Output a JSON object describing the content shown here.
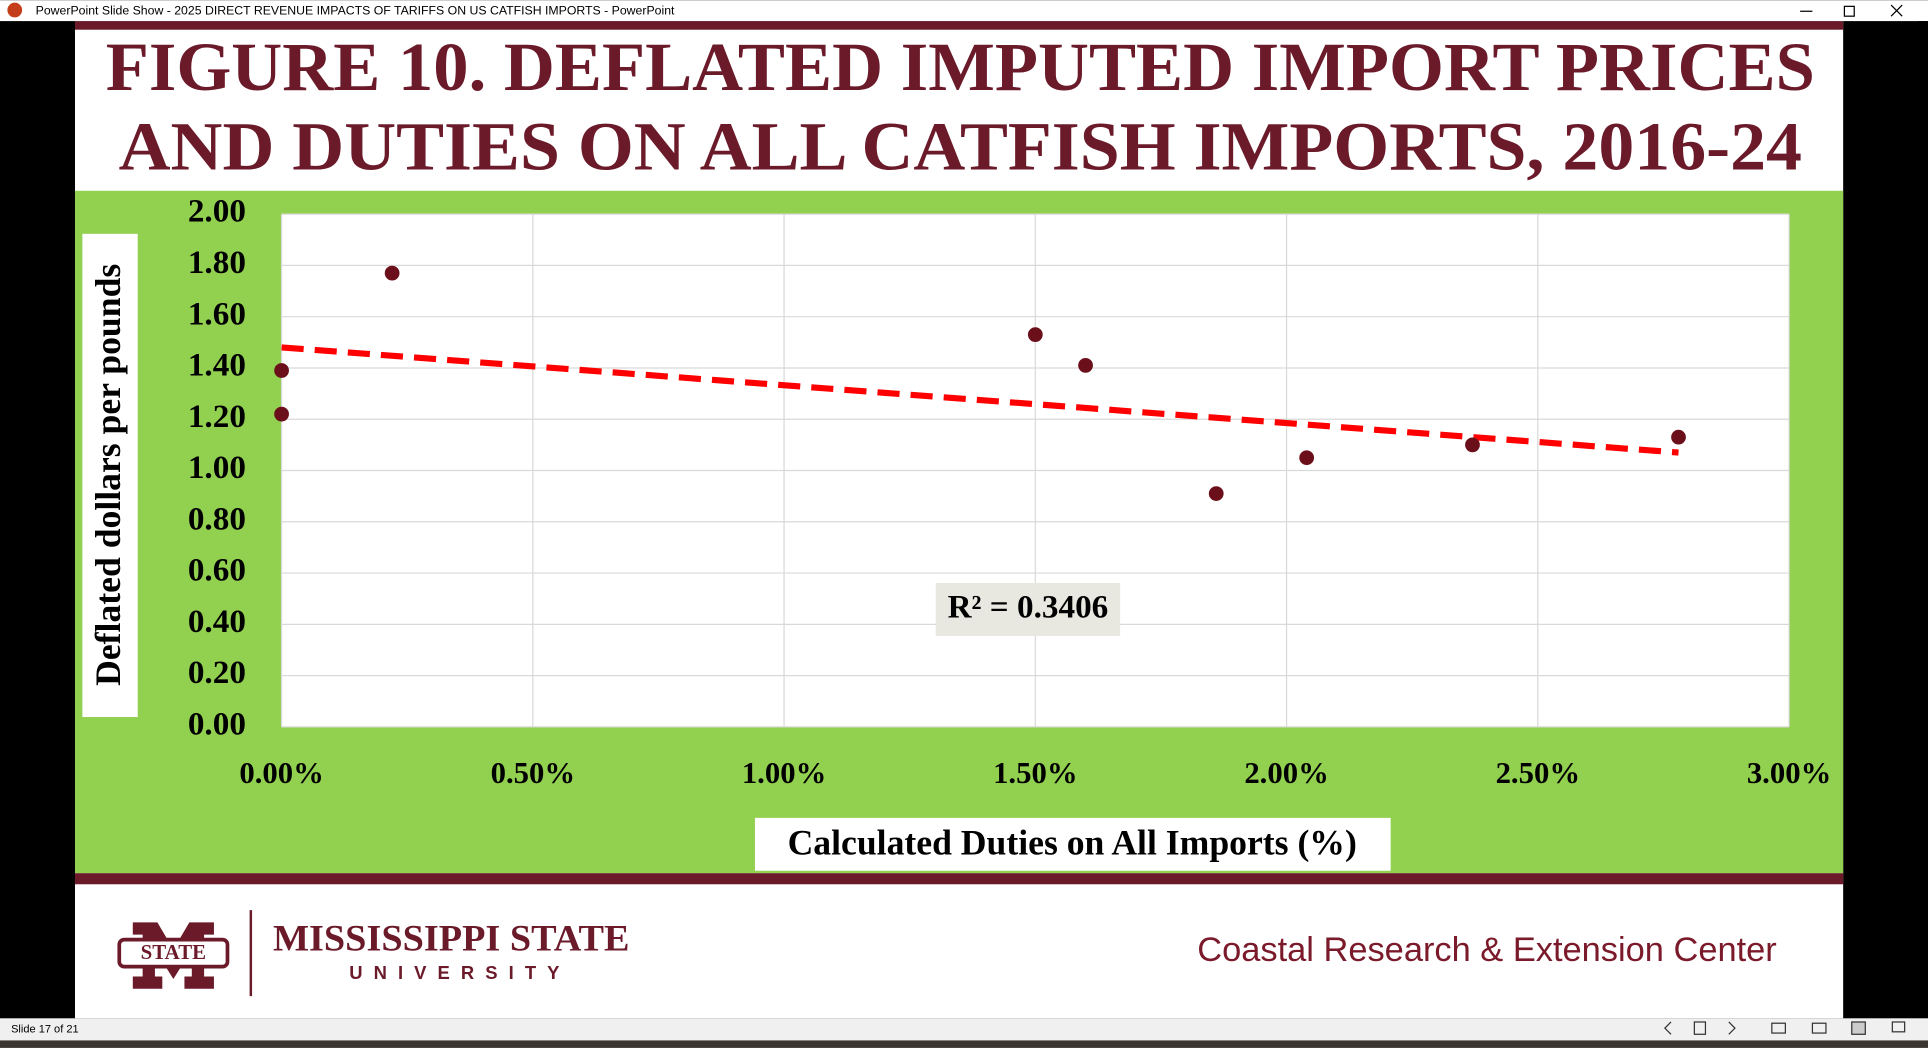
{
  "window_title": "PowerPoint Slide Show  -  2025 DIRECT REVENUE IMPACTS OF TARIFFS ON US CATFISH IMPORTS  -  PowerPoint",
  "status": "Slide 17 of 21",
  "footer": {
    "logo_badge": "STATE",
    "university": "MISSISSIPPI STATE",
    "university_sub": "UNIVERSITY",
    "center": "Coastal Research & Extension Center"
  },
  "chart_data": {
    "type": "scatter",
    "title": [
      "FIGURE 10. DEFLATED IMPUTED IMPORT PRICES",
      "AND DUTIES ON ALL CATFISH IMPORTS, 2016-24"
    ],
    "x_label": "Calculated Duties on All Imports (%)",
    "y_label": "Deflated dollars per pounds",
    "x": [
      0,
      0,
      0.22,
      1.5,
      1.6,
      1.86,
      2.04,
      2.37,
      2.78
    ],
    "values": [
      1.39,
      1.22,
      1.77,
      1.53,
      1.41,
      0.91,
      1.05,
      1.1,
      1.13
    ],
    "color": "#6b0f1a",
    "trendline": {
      "x": [
        0,
        2.78
      ],
      "y": [
        1.48,
        1.07
      ],
      "color": "#ff0000"
    },
    "annotation": "R² = 0.3406",
    "xlim": [
      0,
      3
    ],
    "ylim": [
      0,
      2
    ],
    "xticks": [
      {
        "value": 0,
        "label": "0.00%"
      },
      {
        "value": 0.5,
        "label": "0.50%"
      },
      {
        "value": 1,
        "label": "1.00%"
      },
      {
        "value": 1.5,
        "label": "1.50%"
      },
      {
        "value": 2,
        "label": "2.00%"
      },
      {
        "value": 2.5,
        "label": "2.50%"
      },
      {
        "value": 3,
        "label": "3.00%"
      }
    ],
    "yticks": [
      {
        "value": 0,
        "label": "0.00"
      },
      {
        "value": 0.2,
        "label": "0.20"
      },
      {
        "value": 0.4,
        "label": "0.40"
      },
      {
        "value": 0.6,
        "label": "0.60"
      },
      {
        "value": 0.8,
        "label": "0.80"
      },
      {
        "value": 1,
        "label": "1.00"
      },
      {
        "value": 1.2,
        "label": "1.20"
      },
      {
        "value": 1.4,
        "label": "1.40"
      },
      {
        "value": 1.6,
        "label": "1.60"
      },
      {
        "value": 1.8,
        "label": "1.80"
      },
      {
        "value": 2,
        "label": "2.00"
      }
    ],
    "grid": true
  }
}
